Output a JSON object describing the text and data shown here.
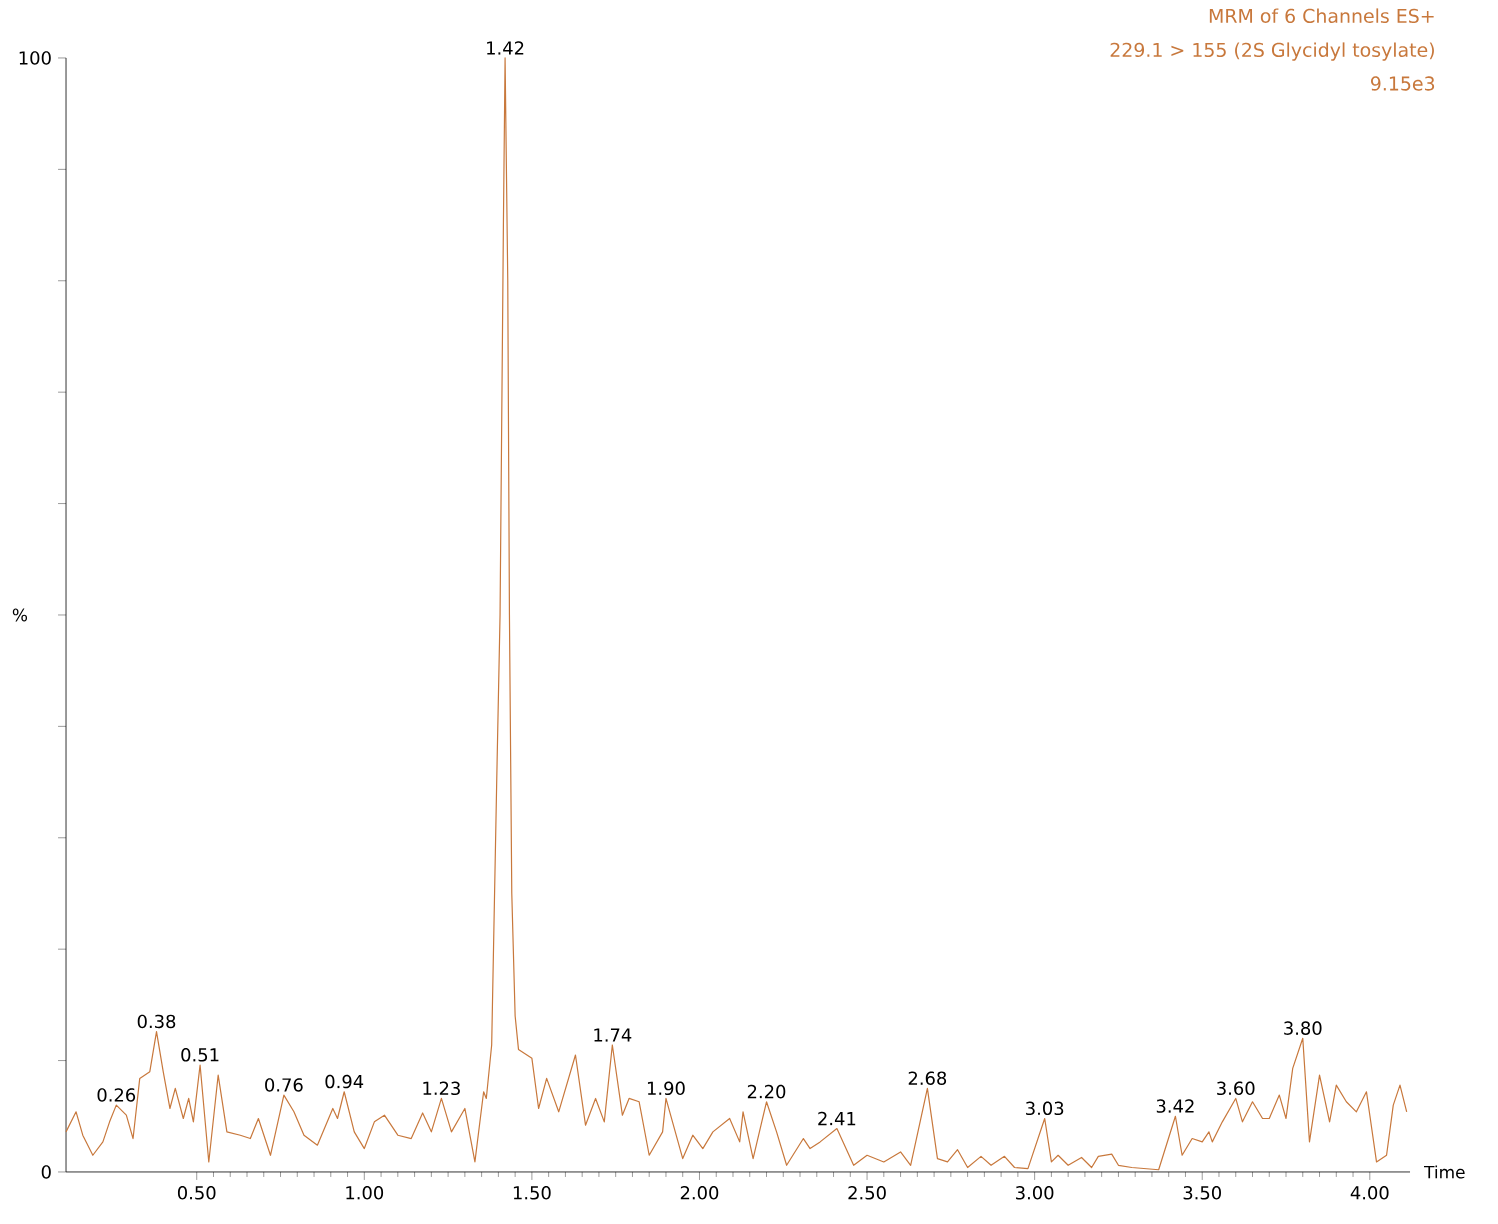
{
  "chart_data": {
    "type": "line",
    "title": "MRM of 6 Channels ES+",
    "subtitle": "229.1 > 155 (2S Glycidyl tosylate)",
    "xlabel": "Time",
    "ylabel": "%",
    "xlim": [
      0.11,
      4.12
    ],
    "ylim": [
      0,
      100
    ],
    "xticks": [
      {
        "value": 0.5,
        "label": "0.50"
      },
      {
        "value": 1.0,
        "label": "1.00"
      },
      {
        "value": 1.5,
        "label": "1.50"
      },
      {
        "value": 2.0,
        "label": "2.00"
      },
      {
        "value": 2.5,
        "label": "2.50"
      },
      {
        "value": 3.0,
        "label": "3.00"
      },
      {
        "value": 3.5,
        "label": "3.50"
      },
      {
        "value": 4.0,
        "label": "4.00"
      }
    ],
    "yticks": [
      0,
      {
        "value": 10,
        "label": null
      },
      {
        "value": 20,
        "label": null
      },
      {
        "value": 30,
        "label": null
      },
      {
        "value": 40,
        "label": null
      },
      {
        "value": 50,
        "label": null
      },
      {
        "value": 60,
        "label": null
      },
      {
        "value": 70,
        "label": null
      },
      {
        "value": 80,
        "label": null
      },
      {
        "value": 90,
        "label": null
      },
      100
    ],
    "annotations": [
      "9.15e3",
      {
        "text": "0.26",
        "x": 0.26,
        "y": 6.0
      },
      {
        "text": "0.38",
        "x": 0.38,
        "y": 12.6
      },
      {
        "text": "0.51",
        "x": 0.51,
        "y": 9.6
      },
      {
        "text": "0.76",
        "x": 0.76,
        "y": 6.9
      },
      {
        "text": "0.94",
        "x": 0.94,
        "y": 7.2
      },
      {
        "text": "1.23",
        "x": 1.23,
        "y": 6.6
      },
      {
        "text": "1.42",
        "x": 1.42,
        "y": 100
      },
      {
        "text": "1.74",
        "x": 1.74,
        "y": 11.4
      },
      {
        "text": "1.90",
        "x": 1.9,
        "y": 6.6
      },
      {
        "text": "2.20",
        "x": 2.2,
        "y": 6.3
      },
      {
        "text": "2.41",
        "x": 2.41,
        "y": 3.9
      },
      {
        "text": "2.68",
        "x": 2.68,
        "y": 7.5
      },
      {
        "text": "3.03",
        "x": 3.03,
        "y": 4.8
      },
      {
        "text": "3.42",
        "x": 3.42,
        "y": 5.0
      },
      {
        "text": "3.60",
        "x": 3.6,
        "y": 6.6
      },
      {
        "text": "3.80",
        "x": 3.8,
        "y": 12.0
      }
    ],
    "series": [
      {
        "color": "#c8783c",
        "x": [
          0.11,
          0.14,
          0.16,
          0.19,
          0.22,
          0.24,
          0.26,
          0.29,
          0.31,
          0.33,
          0.36,
          0.38,
          0.4,
          0.42,
          0.436,
          0.46,
          0.476,
          0.49,
          0.51,
          0.536,
          0.564,
          0.59,
          0.63,
          0.66,
          0.684,
          0.72,
          0.76,
          0.79,
          0.82,
          0.86,
          0.906,
          0.92,
          0.94,
          0.97,
          1.0,
          1.03,
          1.06,
          1.1,
          1.14,
          1.174,
          1.2,
          1.23,
          1.26,
          1.3,
          1.33,
          1.356,
          1.364,
          1.38,
          1.395,
          1.405,
          1.415,
          1.42,
          1.428,
          1.433,
          1.44,
          1.45,
          1.46,
          1.5,
          1.52,
          1.544,
          1.58,
          1.63,
          1.66,
          1.69,
          1.716,
          1.74,
          1.77,
          1.79,
          1.82,
          1.85,
          1.89,
          1.9,
          1.95,
          1.98,
          2.01,
          2.04,
          2.09,
          2.12,
          2.13,
          2.16,
          2.2,
          2.23,
          2.26,
          2.31,
          2.33,
          2.36,
          2.41,
          2.46,
          2.5,
          2.55,
          2.6,
          2.63,
          2.68,
          2.71,
          2.74,
          2.77,
          2.8,
          2.84,
          2.87,
          2.91,
          2.94,
          2.98,
          3.03,
          3.05,
          3.07,
          3.1,
          3.14,
          3.17,
          3.19,
          3.23,
          3.25,
          3.29,
          3.37,
          3.42,
          3.44,
          3.47,
          3.5,
          3.52,
          3.53,
          3.56,
          3.6,
          3.62,
          3.65,
          3.68,
          3.7,
          3.73,
          3.75,
          3.77,
          3.8,
          3.82,
          3.85,
          3.88,
          3.9,
          3.93,
          3.96,
          3.99,
          4.02,
          4.05,
          4.07,
          4.09,
          4.11
        ],
        "values": [
          3.6,
          5.4,
          3.3,
          1.5,
          2.7,
          4.5,
          6.0,
          5.1,
          3.0,
          8.4,
          9.0,
          12.6,
          9.0,
          5.7,
          7.5,
          4.8,
          6.6,
          4.5,
          9.6,
          0.9,
          8.7,
          3.6,
          3.3,
          3.0,
          4.8,
          1.5,
          6.9,
          5.4,
          3.3,
          2.4,
          5.7,
          4.8,
          7.2,
          3.6,
          2.1,
          4.5,
          5.1,
          3.3,
          3.0,
          5.3,
          3.6,
          6.6,
          3.6,
          5.7,
          0.9,
          7.2,
          6.6,
          11.4,
          35,
          50,
          85,
          100,
          80,
          50,
          25,
          14,
          11,
          10.2,
          5.7,
          8.4,
          5.4,
          10.5,
          4.2,
          6.6,
          4.5,
          11.4,
          5.1,
          6.6,
          6.3,
          1.5,
          3.6,
          6.6,
          1.2,
          3.3,
          2.1,
          3.6,
          4.8,
          2.7,
          5.4,
          1.2,
          6.3,
          3.6,
          0.6,
          3.0,
          2.1,
          2.7,
          3.9,
          0.6,
          1.5,
          0.9,
          1.8,
          0.6,
          7.5,
          1.2,
          0.9,
          2.0,
          0.4,
          1.4,
          0.6,
          1.4,
          0.4,
          0.3,
          4.8,
          0.9,
          1.5,
          0.6,
          1.3,
          0.4,
          1.4,
          1.6,
          0.6,
          0.4,
          0.2,
          5.0,
          1.5,
          3.0,
          2.7,
          3.6,
          2.7,
          4.5,
          6.6,
          4.5,
          6.3,
          4.8,
          4.8,
          6.9,
          4.8,
          9.3,
          12.0,
          2.7,
          8.7,
          4.5,
          7.8,
          6.3,
          5.4,
          7.2,
          0.9,
          1.5,
          6.0,
          7.8,
          5.4
        ]
      }
    ]
  }
}
